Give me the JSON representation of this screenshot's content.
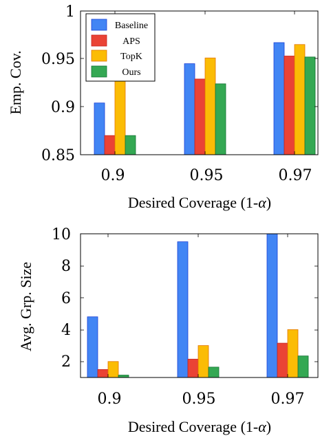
{
  "chart_data": [
    {
      "type": "bar",
      "categories": [
        "0.9",
        "0.95",
        "0.97"
      ],
      "series": [
        {
          "name": "Baseline",
          "values": [
            0.904,
            0.945,
            0.967
          ]
        },
        {
          "name": "APS",
          "values": [
            0.87,
            0.929,
            0.953
          ]
        },
        {
          "name": "TopK",
          "values": [
            0.93,
            0.951,
            0.965
          ]
        },
        {
          "name": "Ours",
          "values": [
            0.87,
            0.924,
            0.952
          ]
        }
      ],
      "xlabel_text": "Desired Coverage (1-",
      "xlabel_symbol": "α",
      "xlabel_close": ")",
      "ylabel": "Emp. Cov.",
      "ylim": [
        0.85,
        1.0
      ],
      "yticks": [
        "0.85",
        "0.9",
        "0.95",
        "1"
      ],
      "legend": "top-left"
    },
    {
      "type": "bar",
      "categories": [
        "0.9",
        "0.95",
        "0.97"
      ],
      "series": [
        {
          "name": "Baseline",
          "values": [
            4.8,
            9.5,
            10
          ]
        },
        {
          "name": "APS",
          "values": [
            1.5,
            2.15,
            3.15
          ]
        },
        {
          "name": "TopK",
          "values": [
            2.0,
            3.0,
            4.0
          ]
        },
        {
          "name": "Ours",
          "values": [
            1.15,
            1.65,
            2.35
          ]
        }
      ],
      "xlabel_text": "Desired Coverage (1-",
      "xlabel_symbol": "α",
      "xlabel_close": ")",
      "ylabel": "Avg. Grp. Size",
      "ylim": [
        1,
        10
      ],
      "yticks": [
        "2",
        "4",
        "6",
        "8",
        "10"
      ],
      "legend": "none"
    }
  ],
  "colors": {
    "Baseline": "#4285f4",
    "APS": "#ea4335",
    "TopK": "#fbbc05",
    "Ours": "#34a853"
  }
}
